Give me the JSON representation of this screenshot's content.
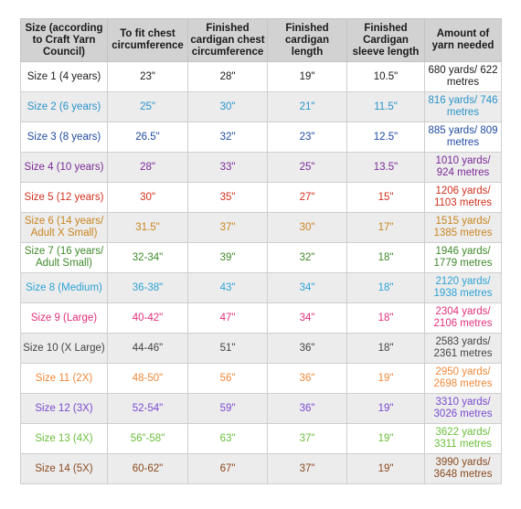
{
  "headers": [
    "Size (according to Craft Yarn Council)",
    "To fit chest circumference",
    "Finished cardigan chest circumference",
    "Finished cardigan length",
    "Finished Cardigan sleeve length",
    "Amount of yarn needed"
  ],
  "rows": [
    {
      "color": "#1a1a1a",
      "cells": [
        "Size 1 (4 years)",
        "23\"",
        "28\"",
        "19\"",
        "10.5\"",
        "680 yards/ 622 metres"
      ]
    },
    {
      "color": "#2a93c9",
      "cells": [
        "Size 2 (6 years)",
        "25\"",
        "30\"",
        "21\"",
        "11.5\"",
        "816 yards/ 746 metres"
      ]
    },
    {
      "color": "#1f4aa0",
      "cells": [
        "Size 3 (8 years)",
        "26.5\"",
        "32\"",
        "23\"",
        "12.5\"",
        "885 yards/ 809 metres"
      ]
    },
    {
      "color": "#7a2a98",
      "cells": [
        "Size 4 (10 years)",
        "28\"",
        "33\"",
        "25\"",
        "13.5\"",
        "1010 yards/ 924 metres"
      ]
    },
    {
      "color": "#d0301e",
      "cells": [
        "Size 5 (12 years)",
        "30\"",
        "35\"",
        "27\"",
        "15\"",
        "1206 yards/ 1103 metres"
      ]
    },
    {
      "color": "#c98520",
      "cells": [
        "Size 6 (14 years/ Adult X Small)",
        "31.5\"",
        "37\"",
        "30\"",
        "17\"",
        "1515 yards/ 1385 metres"
      ]
    },
    {
      "color": "#3f8a2a",
      "cells": [
        "Size 7 (16 years/ Adult Small)",
        "32-34\"",
        "39\"",
        "32\"",
        "18\"",
        "1946 yards/ 1779 metres"
      ]
    },
    {
      "color": "#2ea3d5",
      "cells": [
        "Size 8 (Medium)",
        "36-38\"",
        "43\"",
        "34\"",
        "18\"",
        "2120 yards/ 1938 metres"
      ]
    },
    {
      "color": "#e0307a",
      "cells": [
        "Size 9 (Large)",
        "40-42\"",
        "47\"",
        "34\"",
        "18\"",
        "2304 yards/ 2106 metres"
      ]
    },
    {
      "color": "#444444",
      "cells": [
        "Size 10 (X Large)",
        "44-46\"",
        "51\"",
        "36\"",
        "18\"",
        "2583 yards/ 2361 metres"
      ]
    },
    {
      "color": "#f0883a",
      "cells": [
        "Size 11 (2X)",
        "48-50\"",
        "56\"",
        "36\"",
        "19\"",
        "2950 yards/ 2698 metres"
      ]
    },
    {
      "color": "#7a4ad0",
      "cells": [
        "Size 12 (3X)",
        "52-54\"",
        "59\"",
        "36\"",
        "19\"",
        "3310 yards/ 3026 metres"
      ]
    },
    {
      "color": "#6abf3a",
      "cells": [
        "Size 13 (4X)",
        "56\"-58\"",
        "63\"",
        "37\"",
        "19\"",
        "3622 yards/ 3311 metres"
      ]
    },
    {
      "color": "#8a4a20",
      "cells": [
        "Size 14 (5X)",
        "60-62\"",
        "67\"",
        "37\"",
        "19\"",
        "3990 yards/ 3648 metres"
      ]
    }
  ]
}
